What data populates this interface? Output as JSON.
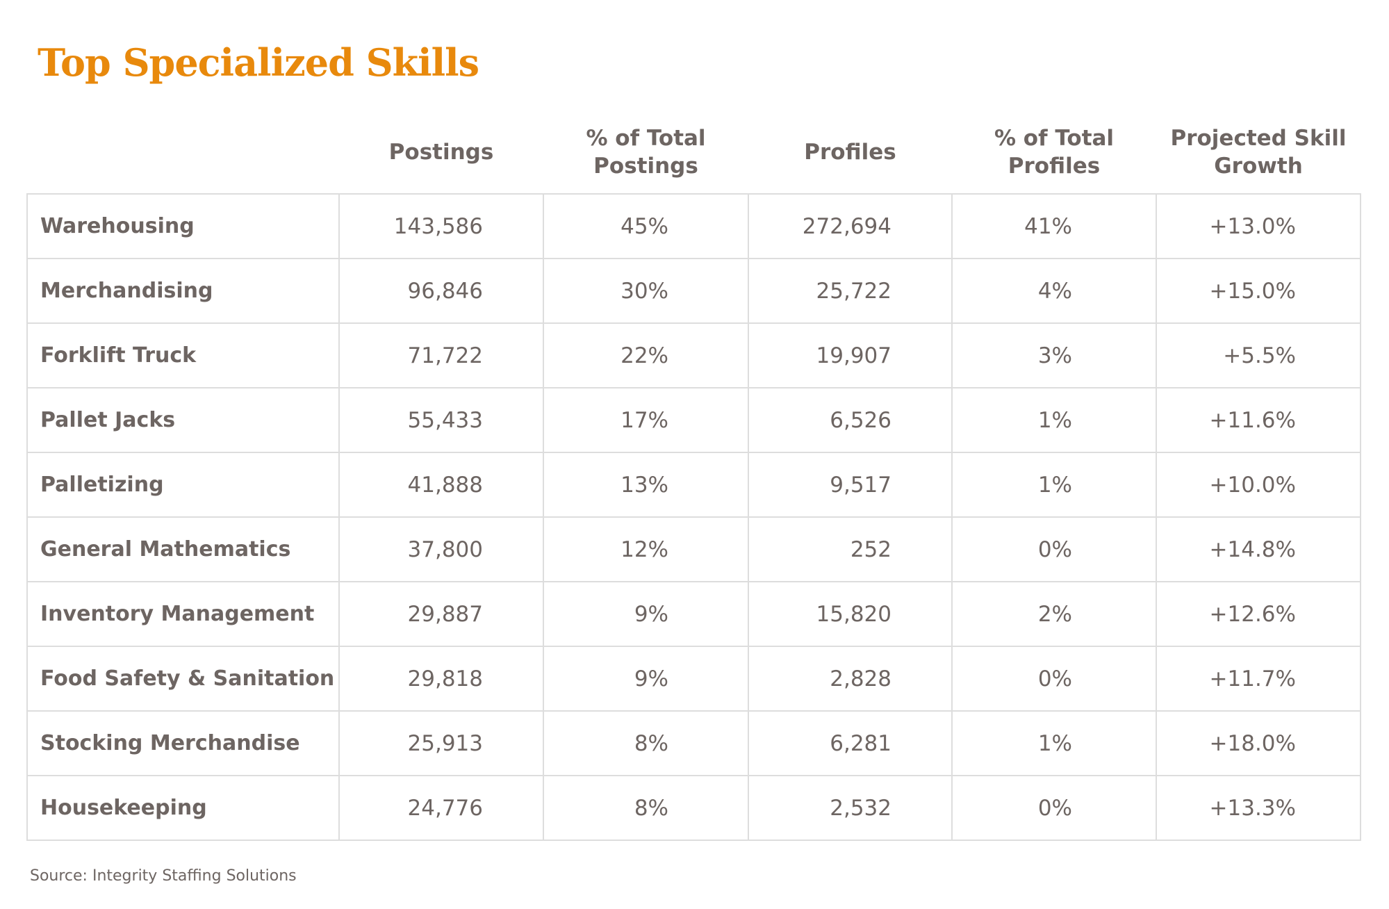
{
  "title": "Top Specialized Skills",
  "colors": {
    "title": "#e8890c",
    "text": "#6d6562",
    "border": "#dddddd"
  },
  "table": {
    "headers": [
      "",
      "Postings",
      "% of Total Postings",
      "Profiles",
      "% of Total Profiles",
      "Projected Skill Growth"
    ],
    "rows": [
      [
        "Warehousing",
        "143,586",
        "45%",
        "272,694",
        "41%",
        "+13.0%"
      ],
      [
        "Merchandising",
        "96,846",
        "30%",
        "25,722",
        "4%",
        "+15.0%"
      ],
      [
        "Forklift Truck",
        "71,722",
        "22%",
        "19,907",
        "3%",
        "+5.5%"
      ],
      [
        "Pallet Jacks",
        "55,433",
        "17%",
        "6,526",
        "1%",
        "+11.6%"
      ],
      [
        "Palletizing",
        "41,888",
        "13%",
        "9,517",
        "1%",
        "+10.0%"
      ],
      [
        "General Mathematics",
        "37,800",
        "12%",
        "252",
        "0%",
        "+14.8%"
      ],
      [
        "Inventory Management",
        "29,887",
        "9%",
        "15,820",
        "2%",
        "+12.6%"
      ],
      [
        "Food Safety & Sanitation",
        "29,818",
        "9%",
        "2,828",
        "0%",
        "+11.7%"
      ],
      [
        "Stocking Merchandise",
        "25,913",
        "8%",
        "6,281",
        "1%",
        "+18.0%"
      ],
      [
        "Housekeeping",
        "24,776",
        "8%",
        "2,532",
        "0%",
        "+13.3%"
      ]
    ]
  },
  "source": "Source: Integrity Staffing Solutions"
}
